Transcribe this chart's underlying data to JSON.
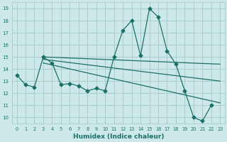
{
  "bg_color": "#cde8e8",
  "grid_color": "#aacccc",
  "line_color": "#1a7068",
  "xlabel": "Humidex (Indice chaleur)",
  "xlim": [
    -0.5,
    23.5
  ],
  "ylim": [
    9.5,
    19.5
  ],
  "xticks": [
    0,
    1,
    2,
    3,
    4,
    5,
    6,
    7,
    8,
    9,
    10,
    11,
    12,
    13,
    14,
    15,
    16,
    17,
    18,
    19,
    20,
    21,
    22,
    23
  ],
  "yticks": [
    10,
    11,
    12,
    13,
    14,
    15,
    16,
    17,
    18,
    19
  ],
  "main_x": [
    0,
    1,
    2,
    3,
    4,
    5,
    6,
    7,
    8,
    9,
    10,
    11,
    12,
    13,
    14,
    15,
    16,
    17,
    18,
    19,
    20,
    21,
    22
  ],
  "main_y": [
    13.5,
    12.7,
    12.5,
    15.0,
    14.5,
    12.7,
    12.8,
    12.6,
    12.2,
    12.4,
    12.2,
    15.0,
    17.2,
    18.0,
    15.1,
    19.0,
    18.3,
    15.5,
    14.4,
    12.2,
    10.0,
    9.7,
    11.0
  ],
  "line1_x": [
    3,
    23
  ],
  "line1_y": [
    15.0,
    14.4
  ],
  "line2_x": [
    3,
    23
  ],
  "line2_y": [
    14.8,
    13.0
  ],
  "line3_x": [
    3,
    23
  ],
  "line3_y": [
    14.5,
    11.2
  ]
}
